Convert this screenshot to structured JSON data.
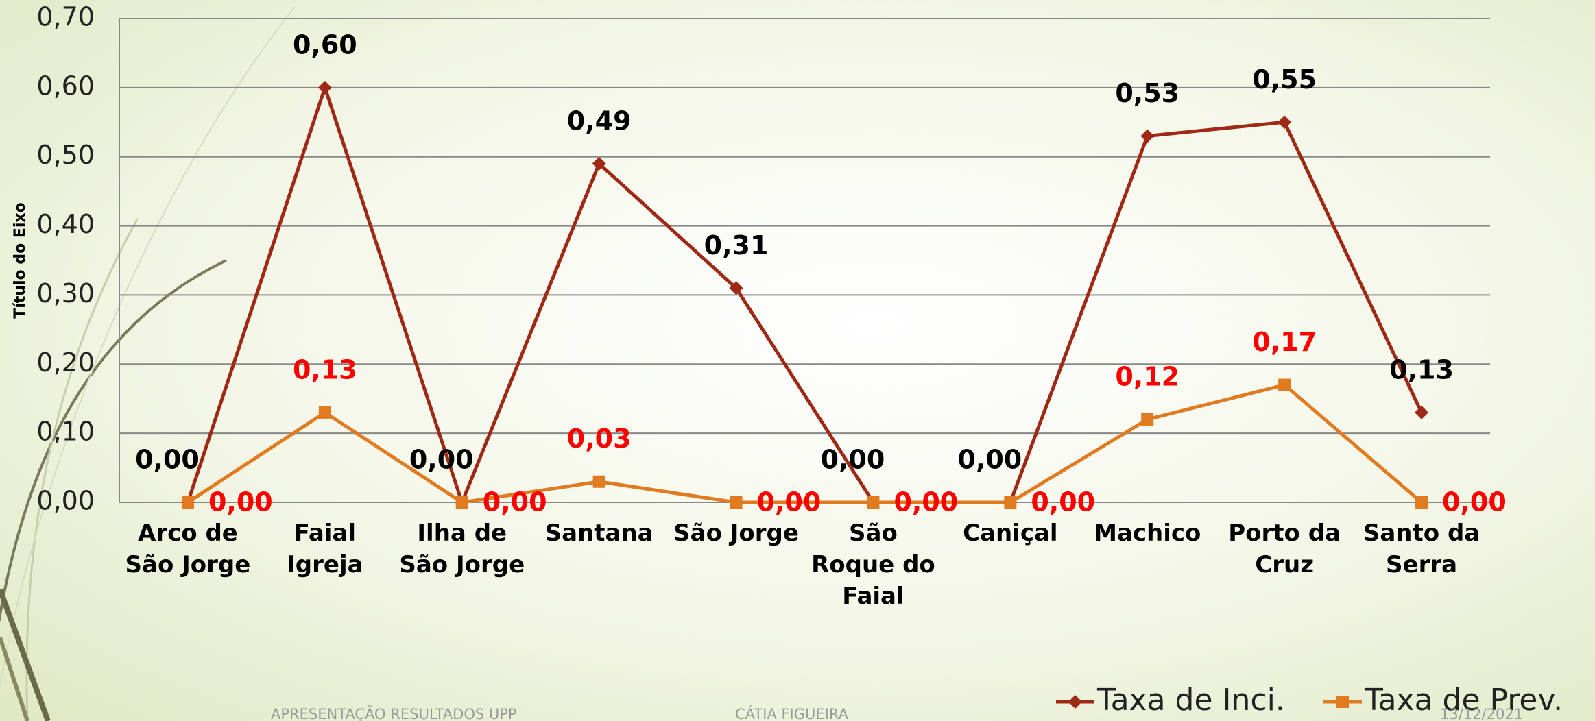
{
  "chart_data": {
    "type": "line",
    "y_axis_label": "Título do Eixo",
    "categories": [
      "Arco de São Jorge",
      "Faial Igreja",
      "Ilha de São Jorge",
      "Santana",
      "São Jorge",
      "São Roque do Faial",
      "Caniçal",
      "Machico",
      "Porto da Cruz",
      "Santo da Serra"
    ],
    "series": [
      {
        "name": "Taxa de Inci.",
        "color": "#9e2a16",
        "marker": "diamond",
        "label_color": "#000000",
        "values": [
          0.0,
          0.6,
          0.0,
          0.49,
          0.31,
          0.0,
          0.0,
          0.53,
          0.55,
          0.13
        ],
        "value_labels": [
          "0,00",
          "0,60",
          "0,00",
          "0,49",
          "0,31",
          "0,00",
          "0,00",
          "0,53",
          "0,55",
          "0,13"
        ]
      },
      {
        "name": "Taxa de Prev.",
        "color": "#e07b1f",
        "marker": "square",
        "label_color": "#ff0000",
        "values": [
          0.0,
          0.13,
          0.0,
          0.03,
          0.0,
          0.0,
          0.0,
          0.12,
          0.17,
          0.0
        ],
        "value_labels": [
          "0,00",
          "0,13",
          "0,00",
          "0,03",
          "0,00",
          "0,00",
          "0,00",
          "0,12",
          "0,17",
          "0,00"
        ]
      }
    ],
    "ylim": [
      0,
      0.7
    ],
    "yticks": [
      {
        "value": 0,
        "label": "0,00"
      },
      {
        "value": 0.1,
        "label": "0,10"
      },
      {
        "value": 0.2,
        "label": "0,20"
      },
      {
        "value": 0.3,
        "label": "0,30"
      },
      {
        "value": 0.4,
        "label": "0,40"
      },
      {
        "value": 0.5,
        "label": "0,50"
      },
      {
        "value": 0.6,
        "label": "0,60"
      },
      {
        "value": 0.7,
        "label": "0,70"
      }
    ],
    "grid": true,
    "legend": "bottom-right"
  },
  "footer": {
    "left": "APRESENTAÇÃO RESULTADOS UPP",
    "center": "CÁTIA FIGUEIRA",
    "right": "13/12/2021"
  }
}
